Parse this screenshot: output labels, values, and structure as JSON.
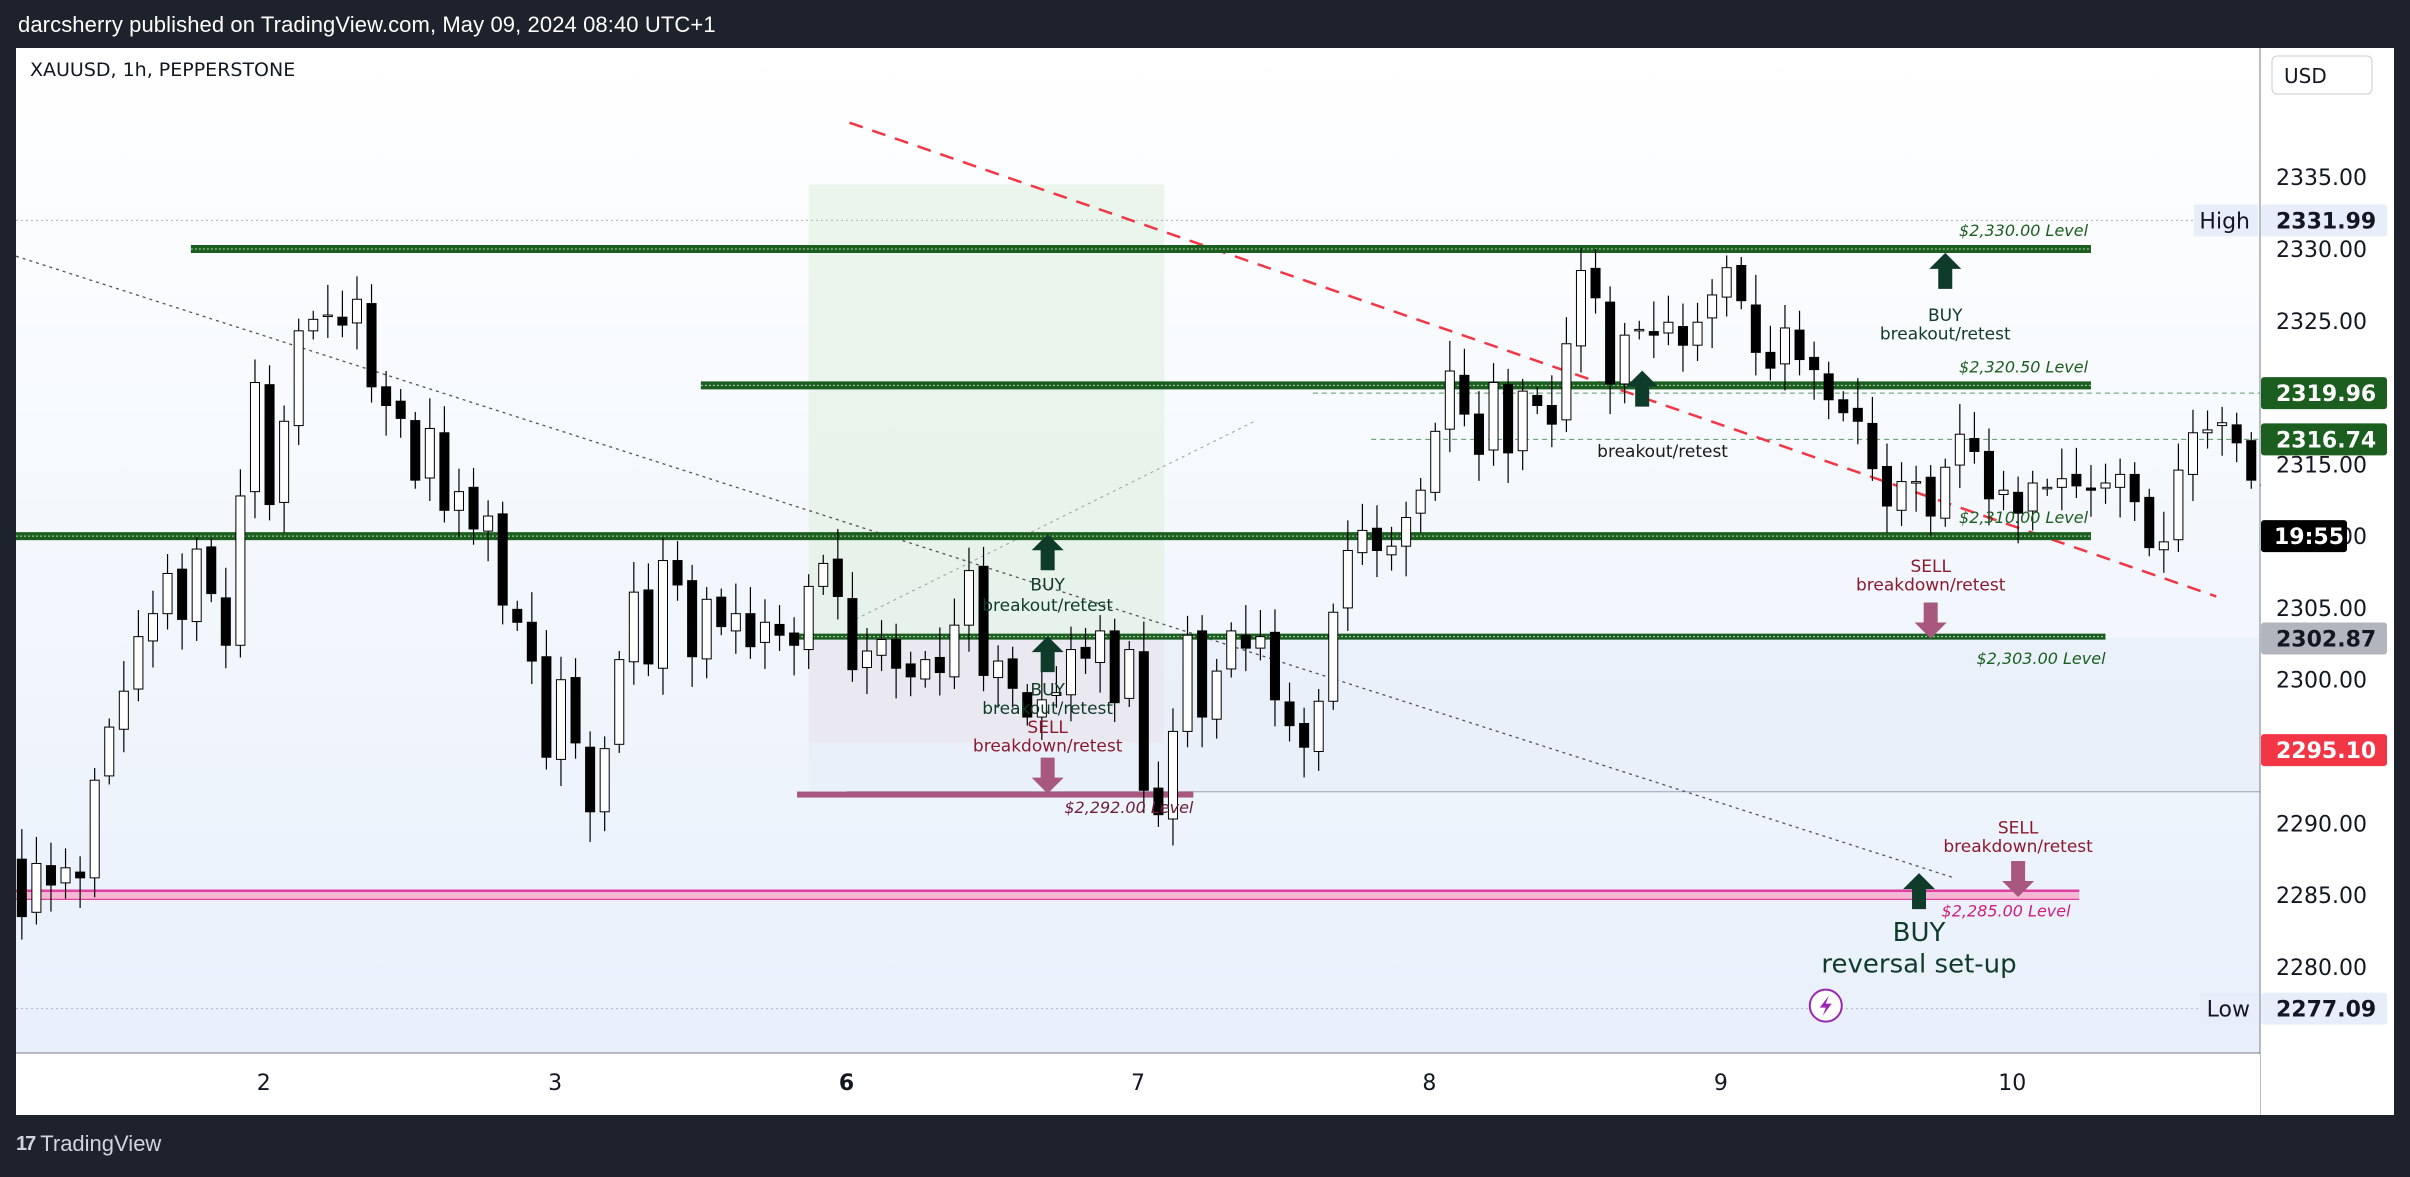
{
  "header": {
    "published_line": "darcsherry published on TradingView.com, May 09, 2024 08:40 UTC+1"
  },
  "footer": {
    "logo_text": "TradingView",
    "logo_icon": "tradingview-logo-icon"
  },
  "chart_data": {
    "type": "candlestick",
    "symbol_label": "XAUUSD, 1h, PEPPERSTONE",
    "currency": "USD",
    "ylim": [
      2274,
      2344
    ],
    "y_ticks": [
      "2280.00",
      "2285.00",
      "2290.00",
      "2295.00",
      "2300.00",
      "2305.00",
      "2310.00",
      "2315.00",
      "2320.00",
      "2325.00",
      "2330.00",
      "2335.00"
    ],
    "x_ticks": [
      {
        "label": "2",
        "t": 8.5
      },
      {
        "label": "3",
        "t": 18.5
      },
      {
        "label": "6",
        "t": 28.5,
        "bold": true
      },
      {
        "label": "7",
        "t": 38.5
      },
      {
        "label": "8",
        "t": 48.5
      },
      {
        "label": "9",
        "t": 58.5
      },
      {
        "label": "10",
        "t": 68.5
      }
    ],
    "xlim": [
      0,
      77
    ],
    "closes": [
      2287.5,
      2283.5,
      2287.2,
      2285.7,
      2286.9,
      2286.2,
      2293.0,
      2296.7,
      2299.2,
      2303.0,
      2304.6,
      2307.4,
      2304.2,
      2309.1,
      2306.0,
      2302.4,
      2312.8,
      2320.7,
      2312.2,
      2318.0,
      2324.3,
      2325.1,
      2325.4,
      2324.7,
      2326.5,
      2320.4,
      2319.1,
      2318.2,
      2313.9,
      2317.5,
      2311.8,
      2313.1,
      2310.5,
      2311.4,
      2305.2,
      2304.0,
      2301.3,
      2294.6,
      2300.0,
      2295.6,
      2290.8,
      2295.2,
      2301.4,
      2306.1,
      2301.1,
      2308.3,
      2306.6,
      2301.6,
      2305.6,
      2303.7,
      2304.6,
      2302.3,
      2304.0,
      2303.1,
      2302.4,
      2306.5,
      2308.1,
      2305.8,
      2300.7,
      2302.0,
      2302.8,
      2300.8,
      2300.2,
      2301.4,
      2300.5,
      2303.8,
      2307.6,
      2300.3,
      2301.3,
      2299.4,
      2297.4,
      2298.6,
      2299.1,
      2302.1,
      2301.5,
      2303.4,
      2298.4,
      2302.1,
      2292.3,
      2290.6,
      2296.4,
      2303.1,
      2297.4,
      2300.6,
      2303.4,
      2302.2,
      2303.0,
      2298.6,
      2296.8,
      2295.3,
      2298.5,
      2304.7,
      2309.0,
      2310.4,
      2309.0,
      2309.3,
      2311.3,
      2313.2,
      2317.3,
      2321.5,
      2318.5,
      2315.7,
      2320.7,
      2315.8,
      2320.1,
      2319.1,
      2317.8,
      2323.4,
      2328.5,
      2326.6,
      2320.6,
      2324.0,
      2324.4,
      2324.0,
      2324.9,
      2323.3,
      2324.9,
      2326.8,
      2328.7,
      2326.4,
      2322.8,
      2321.7,
      2324.5,
      2322.3,
      2321.6,
      2319.5,
      2318.6,
      2318.0,
      2314.7,
      2312.1,
      2313.8,
      2313.8,
      2311.4,
      2314.8,
      2317.1,
      2315.9,
      2312.6,
      2313.2,
      2311.6,
      2313.7,
      2313.4,
      2314.0,
      2313.5,
      2313.2,
      2313.7,
      2314.3,
      2312.4,
      2309.2,
      2309.6,
      2314.6,
      2317.2,
      2317.4,
      2317.9,
      2316.5,
      2313.9,
      2313.6,
      2306.8,
      2303.8,
      2307.8,
      2310.8,
      2314.8,
      2316.4,
      2318.5,
      2319.4,
      2317.8,
      2313.4,
      2313.2,
      2309.7,
      2314.6,
      2314.4,
      2318.8,
      2316.6,
      2311.0,
      2311.5,
      2309.3,
      2307.4,
      2308.1,
      2308.8,
      2308.1,
      2308.6,
      2309.8,
      2309.0,
      2310.1,
      2310.8,
      2311.7,
      2313.5,
      2315.7,
      2316.9,
      2314.3,
      2313.5,
      2310.1
    ],
    "annotations": {
      "high_label": "High",
      "high_value": "2331.99",
      "low_label": "Low",
      "low_value": "2277.09",
      "price_2319": "2319.96",
      "price_2316": "2316.74",
      "countdown": "19:55",
      "price_2302": "2302.87",
      "price_2295": "2295.10",
      "level_2330": "$2,330.00 Level",
      "level_2320": "$2,320.50 Level",
      "level_2310": "$2,310.00 Level",
      "level_2303": "$2,303.00 Level",
      "level_2292": "$2,292.00 Level",
      "level_2285": "$2,285.00 Level",
      "buy": "BUY",
      "sell": "SELL",
      "breakout_retest": "breakout/retest",
      "breakdown_retest": "breakdown/retest",
      "reversal_setup": "reversal set-up",
      "breakout_retest_inline": "breakout/retest"
    },
    "colors": {
      "up": "#ffffff",
      "down": "#000000",
      "wick": "#000000",
      "support_green": "#1b5e20",
      "sell_pink": "#a8577f",
      "magenta_line": "#e040a0",
      "red_trend": "#f23645",
      "badge_green": "#1b5e20",
      "badge_gray": "#b2b5be",
      "badge_red": "#f23645"
    }
  }
}
